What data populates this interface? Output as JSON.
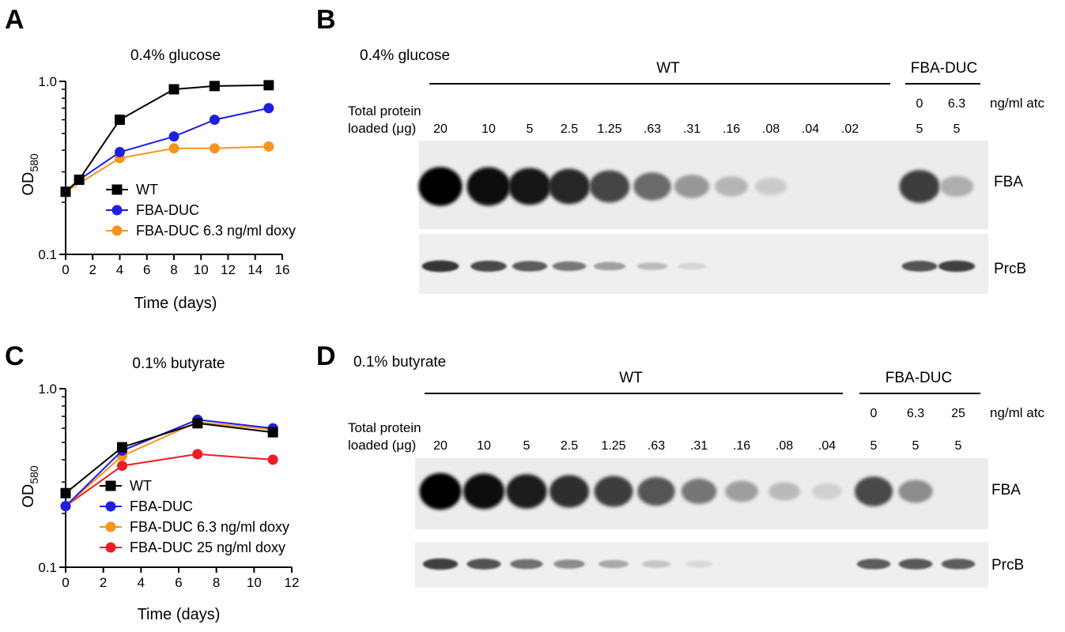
{
  "panels": {
    "A": {
      "letter": "A",
      "title": "0.4% glucose",
      "ylabel_main": "OD",
      "ylabel_sub": "580",
      "xlabel": "Time (days)"
    },
    "B": {
      "letter": "B",
      "title": "0.4% glucose",
      "group_wt": "WT",
      "group_duc": "FBA-DUC",
      "unit_label": "ng/ml atc",
      "atc_values": [
        "0",
        "6.3"
      ],
      "loaded_line1": "Total protein",
      "loaded_line2": "loaded (μg)",
      "lane_amounts": [
        "20",
        "10",
        "5",
        "2.5",
        "1.25",
        ".63",
        ".31",
        ".16",
        ".08",
        ".04",
        ".02",
        "5",
        "5"
      ],
      "band_fba": "FBA",
      "band_prcb": "PrcB",
      "fba_intensity": [
        1.0,
        0.98,
        0.92,
        0.85,
        0.72,
        0.55,
        0.35,
        0.22,
        0.12,
        0.0,
        0.0,
        0.75,
        0.25
      ],
      "prcb_intensity": [
        0.9,
        0.8,
        0.7,
        0.55,
        0.35,
        0.2,
        0.06,
        0.0,
        0.0,
        0.0,
        0.0,
        0.75,
        0.85
      ]
    },
    "C": {
      "letter": "C",
      "title": "0.1% butyrate",
      "ylabel_main": "OD",
      "ylabel_sub": "580",
      "xlabel": "Time (days)"
    },
    "D": {
      "letter": "D",
      "title": "0.1% butyrate",
      "group_wt": "WT",
      "group_duc": "FBA-DUC",
      "unit_label": "ng/ml atc",
      "atc_values": [
        "0",
        "6.3",
        "25"
      ],
      "loaded_line1": "Total protein",
      "loaded_line2": "loaded (μg)",
      "lane_amounts": [
        "20",
        "10",
        "5",
        "2.5",
        "1.25",
        ".63",
        ".31",
        ".16",
        ".08",
        ".04",
        "5",
        "5",
        "5"
      ],
      "band_fba": "FBA",
      "band_prcb": "PrcB",
      "fba_intensity": [
        1.0,
        0.95,
        0.9,
        0.82,
        0.75,
        0.65,
        0.5,
        0.32,
        0.2,
        0.1,
        0.7,
        0.4,
        0.0
      ],
      "prcb_intensity": [
        0.85,
        0.75,
        0.6,
        0.45,
        0.3,
        0.15,
        0.05,
        0.0,
        0.0,
        0.0,
        0.7,
        0.72,
        0.7
      ]
    }
  },
  "chart_data": [
    {
      "type": "line",
      "panel": "A",
      "title": "0.4% glucose",
      "xlabel": "Time (days)",
      "ylabel": "OD580",
      "yscale": "log",
      "xlim": [
        0,
        16
      ],
      "ylim": [
        0.1,
        1.0
      ],
      "xticks": [
        "0",
        "2",
        "4",
        "6",
        "8",
        "10",
        "12",
        "14",
        "16"
      ],
      "yticks": [
        "0.1",
        "1.0"
      ],
      "legend_position": "lower-right",
      "series": [
        {
          "name": "WT",
          "color": "#000000",
          "marker": "square",
          "x": [
            0,
            1,
            4,
            8,
            11,
            15
          ],
          "y": [
            0.23,
            0.27,
            0.6,
            0.9,
            0.94,
            0.95
          ]
        },
        {
          "name": "FBA-DUC",
          "color": "#1f1fe0",
          "marker": "circle",
          "x": [
            0,
            1,
            4,
            8,
            11,
            15
          ],
          "y": [
            0.23,
            0.27,
            0.39,
            0.48,
            0.6,
            0.7
          ]
        },
        {
          "name": "FBA-DUC 6.3 ng/ml doxy",
          "color": "#f7941d",
          "marker": "circle",
          "x": [
            0,
            4,
            8,
            11,
            15
          ],
          "y": [
            0.23,
            0.36,
            0.41,
            0.41,
            0.42
          ]
        }
      ]
    },
    {
      "type": "line",
      "panel": "C",
      "title": "0.1% butyrate",
      "xlabel": "Time (days)",
      "ylabel": "OD580",
      "yscale": "log",
      "xlim": [
        0,
        12
      ],
      "ylim": [
        0.1,
        1.0
      ],
      "xticks": [
        "0",
        "2",
        "4",
        "6",
        "8",
        "10",
        "12"
      ],
      "yticks": [
        "0.1",
        "1.0"
      ],
      "legend_position": "lower-right",
      "series": [
        {
          "name": "WT",
          "color": "#000000",
          "marker": "square",
          "x": [
            0,
            3,
            7,
            11
          ],
          "y": [
            0.26,
            0.47,
            0.64,
            0.57
          ]
        },
        {
          "name": "FBA-DUC",
          "color": "#1f1fe0",
          "marker": "circle",
          "x": [
            0,
            3,
            7,
            11
          ],
          "y": [
            0.22,
            0.45,
            0.67,
            0.6
          ]
        },
        {
          "name": "FBA-DUC 6.3 ng/ml doxy",
          "color": "#f7941d",
          "marker": "circle",
          "x": [
            0,
            3,
            7,
            11
          ],
          "y": [
            0.22,
            0.42,
            0.65,
            0.59
          ]
        },
        {
          "name": "FBA-DUC 25 ng/ml doxy",
          "color": "#ee1c25",
          "marker": "circle",
          "x": [
            0,
            3,
            7,
            11
          ],
          "y": [
            0.22,
            0.37,
            0.43,
            0.4
          ]
        }
      ]
    }
  ]
}
